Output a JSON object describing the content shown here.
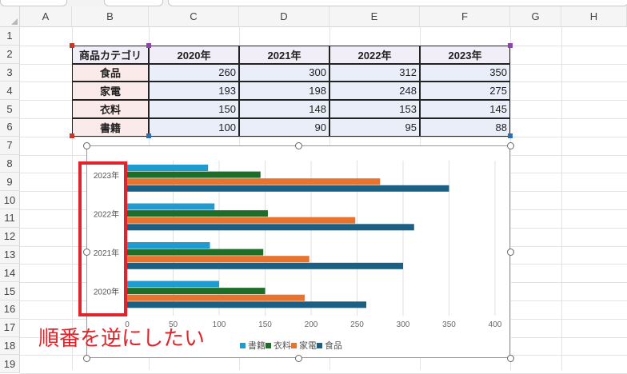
{
  "columns": [
    "A",
    "B",
    "C",
    "D",
    "E",
    "F",
    "G",
    "H"
  ],
  "rows": [
    "1",
    "2",
    "3",
    "4",
    "5",
    "6",
    "7",
    "8",
    "9",
    "10",
    "11",
    "12",
    "13",
    "14",
    "15",
    "16",
    "17",
    "18",
    "19"
  ],
  "table": {
    "header": [
      "商品カテゴリ",
      "2020年",
      "2021年",
      "2022年",
      "2023年"
    ],
    "rows": [
      {
        "category": "食品",
        "values": [
          "260",
          "300",
          "312",
          "350"
        ]
      },
      {
        "category": "家電",
        "values": [
          "193",
          "198",
          "248",
          "275"
        ]
      },
      {
        "category": "衣料",
        "values": [
          "150",
          "148",
          "153",
          "145"
        ]
      },
      {
        "category": "書籍",
        "values": [
          "100",
          "90",
          "95",
          "88"
        ]
      }
    ]
  },
  "annotation": "順番を逆にしたい",
  "colors": {
    "書籍": "#1f9bd0",
    "衣料": "#1e6e2a",
    "家電": "#e8732f",
    "食品": "#1b5f82",
    "highlight": "#e0242c"
  },
  "chart_data": {
    "type": "bar",
    "orientation": "horizontal",
    "categories": [
      "2023年",
      "2022年",
      "2021年",
      "2020年"
    ],
    "series": [
      {
        "name": "書籍",
        "values": [
          88,
          95,
          90,
          100
        ]
      },
      {
        "name": "衣料",
        "values": [
          145,
          153,
          148,
          150
        ]
      },
      {
        "name": "家電",
        "values": [
          275,
          248,
          198,
          193
        ]
      },
      {
        "name": "食品",
        "values": [
          350,
          312,
          300,
          260
        ]
      }
    ],
    "xlim": [
      0,
      400
    ],
    "xticks": [
      "0",
      "50",
      "100",
      "150",
      "200",
      "250",
      "300",
      "350",
      "400"
    ],
    "grid": true,
    "legend": "bottom"
  }
}
